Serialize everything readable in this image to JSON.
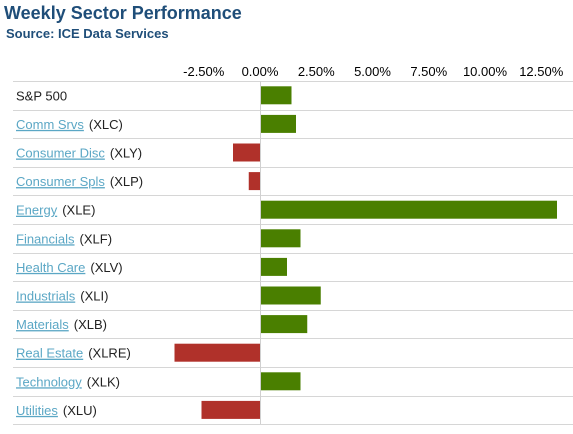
{
  "header": {
    "title": "Weekly Sector Performance",
    "subtitle": "Source: ICE Data Services"
  },
  "chart_data": {
    "type": "bar",
    "orientation": "horizontal",
    "title": "Weekly Sector Performance",
    "subtitle": "Source: ICE Data Services",
    "x_ticks": [
      "-2.50%",
      "0.00%",
      "2.50%",
      "5.00%",
      "7.50%",
      "10.00%",
      "12.50%"
    ],
    "x_tick_values": [
      -2.5,
      0,
      2.5,
      5,
      7.5,
      10,
      12.5
    ],
    "xlim": [
      -5.8,
      14.5
    ],
    "grid": false,
    "legend": "none",
    "colors": {
      "positive": "#4a7f00",
      "negative": "#b0312a"
    },
    "categories": [
      {
        "name": "S&P 500",
        "ticker": "",
        "value": 1.4,
        "link": false
      },
      {
        "name": "Comm Srvs",
        "ticker": "(XLC)",
        "value": 1.6,
        "link": true
      },
      {
        "name": "Consumer Disc",
        "ticker": "(XLY)",
        "value": -1.2,
        "link": true
      },
      {
        "name": "Consumer Spls",
        "ticker": "(XLP)",
        "value": -0.5,
        "link": true
      },
      {
        "name": "Energy",
        "ticker": "(XLE)",
        "value": 13.2,
        "link": true
      },
      {
        "name": "Financials",
        "ticker": "(XLF)",
        "value": 1.8,
        "link": true
      },
      {
        "name": "Health Care",
        "ticker": "(XLV)",
        "value": 1.2,
        "link": true
      },
      {
        "name": "Industrials",
        "ticker": "(XLI)",
        "value": 2.7,
        "link": true
      },
      {
        "name": "Materials",
        "ticker": "(XLB)",
        "value": 2.1,
        "link": true
      },
      {
        "name": "Real Estate",
        "ticker": "(XLRE)",
        "value": -3.8,
        "link": true
      },
      {
        "name": "Technology",
        "ticker": "(XLK)",
        "value": 1.8,
        "link": true
      },
      {
        "name": "Utilities",
        "ticker": "(XLU)",
        "value": -2.6,
        "link": true
      }
    ]
  }
}
